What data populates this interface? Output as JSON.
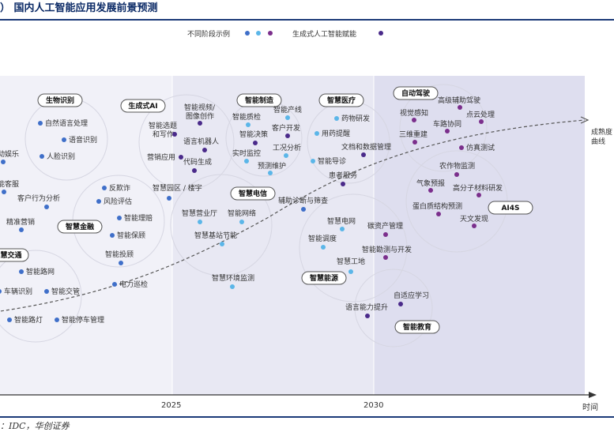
{
  "title": "）  国内人工智能应用发展前景预测",
  "source": "：IDC，华创证券",
  "legend": {
    "stages_label": "不同阶段示例",
    "genai_label": "生成式人工智能赋能",
    "colors": {
      "blue": "#3f6fc9",
      "lightblue": "#5bb6e8",
      "purple": "#7b2f8c",
      "darkpurple": "#4a2a8a"
    }
  },
  "axis": {
    "x_label": "时间",
    "curve_label": "成熟度曲线",
    "ticks": [
      "2025",
      "2030"
    ]
  },
  "clusters": {
    "bio": {
      "label": "生物识别",
      "items": [
        "自然语言处理",
        "语音识别",
        "人脸识别"
      ]
    },
    "ent": {
      "items": [
        "动娱乐",
        "能客服"
      ]
    },
    "genai": {
      "label": "生成式AI",
      "items": [
        "智能视频/图像创作",
        "智能选题和写作",
        "语言机器人",
        "营销应用",
        "代码生成"
      ]
    },
    "manu": {
      "label": "智能制造",
      "items": [
        "智能质检",
        "智能产线",
        "客户开发",
        "智能决策",
        "工况分析",
        "实时监控",
        "预测维护"
      ]
    },
    "med": {
      "label": "智慧医疗",
      "items": [
        "药物研发",
        "用药提醒",
        "文档和数据管理",
        "智能导诊",
        "患者服务"
      ]
    },
    "auto": {
      "label": "自动驾驶",
      "items": [
        "高级辅助驾驶",
        "视觉感知",
        "点云处理",
        "车路协同",
        "三维重建",
        "仿真测试"
      ]
    },
    "fin": {
      "label": "智慧金融",
      "items": [
        "反欺诈",
        "风险评估",
        "客户行为分析",
        "精准营销",
        "智能理赔",
        "智能保顾",
        "智能投顾"
      ]
    },
    "tele": {
      "label": "智慧电信",
      "items": [
        "辅助诊断与筛查",
        "智慧园区 / 楼宇",
        "智慧营业厅",
        "智能网络",
        "智慧基站节能"
      ]
    },
    "ai4s": {
      "label": "AI4S",
      "items": [
        "农作物监测",
        "气象预报",
        "高分子材料研发",
        "蛋白质结构预测",
        "天文发现"
      ]
    },
    "traffic": {
      "label": "慧交通",
      "items": [
        "智能路网",
        "车辆识别",
        "智能交管",
        "智能路灯",
        "智能停车管理",
        "电力巡检"
      ]
    },
    "energy": {
      "label": "智慧能源",
      "items": [
        "智慧电网",
        "碳资产管理",
        "智能调度",
        "智能勘测与开发",
        "智慧工地",
        "智慧环境监测"
      ]
    },
    "edu": {
      "label": "智能教育",
      "items": [
        "自适应学习",
        "语言能力提升"
      ]
    }
  }
}
